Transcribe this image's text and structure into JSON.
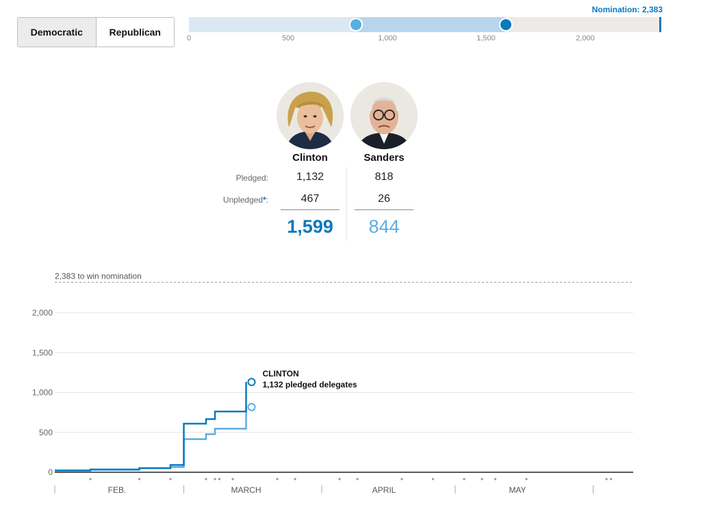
{
  "party_toggle": {
    "options": [
      "Democratic",
      "Republican"
    ],
    "selected": "Democratic"
  },
  "progress": {
    "nomination_label": "Nomination: 2,383",
    "max": 2383,
    "ticks": [
      "0",
      "500",
      "1,000",
      "1,500",
      "2,000"
    ],
    "tick_values": [
      0,
      500,
      1000,
      1500,
      2000
    ],
    "markers": [
      {
        "candidate": "Sanders",
        "value": 844
      },
      {
        "candidate": "Clinton",
        "value": 1599
      }
    ]
  },
  "candidates": [
    {
      "name": "Clinton",
      "pledged": "1,132",
      "unpledged": "467",
      "total": "1,599"
    },
    {
      "name": "Sanders",
      "pledged": "818",
      "unpledged": "26",
      "total": "844"
    }
  ],
  "labels": {
    "pledged": "Pledged:",
    "unpledged": "Unpledged",
    "star": "*"
  },
  "colors": {
    "clinton": "#0a79bd",
    "sanders": "#5aaee3",
    "track": "#ecebe7"
  },
  "chart_data": {
    "type": "line",
    "threshold": {
      "value": 2383,
      "label": "2,383 to win nomination"
    },
    "ylim": [
      0,
      2383
    ],
    "yticks": [
      0,
      500,
      1000,
      1500,
      2000
    ],
    "ytick_labels": [
      "0",
      "500",
      "1,000",
      "1,500",
      "2,000"
    ],
    "grid": true,
    "x_domain": [
      "2016-02-01",
      "2016-06-10"
    ],
    "month_labels": [
      {
        "label": "FEB.",
        "date": "2016-02-15"
      },
      {
        "label": "MARCH",
        "date": "2016-03-15"
      },
      {
        "label": "APRIL",
        "date": "2016-04-15"
      },
      {
        "label": "MAY",
        "date": "2016-05-15"
      }
    ],
    "month_boundaries": [
      "2016-02-01",
      "2016-03-01",
      "2016-04-01",
      "2016-05-01",
      "2016-06-01"
    ],
    "event_dots": [
      "2016-02-09",
      "2016-02-20",
      "2016-02-27",
      "2016-03-06",
      "2016-03-08",
      "2016-03-09",
      "2016-03-12",
      "2016-03-22",
      "2016-03-26",
      "2016-04-05",
      "2016-04-09",
      "2016-04-19",
      "2016-04-26",
      "2016-05-03",
      "2016-05-07",
      "2016-05-10",
      "2016-05-17",
      "2016-06-04",
      "2016-06-05"
    ],
    "annotation": {
      "title": "CLINTON",
      "text": "1,132 pledged delegates"
    },
    "series": [
      {
        "name": "Clinton",
        "color": "#0a79bd",
        "points": [
          [
            "2016-02-01",
            23
          ],
          [
            "2016-02-09",
            32
          ],
          [
            "2016-02-20",
            52
          ],
          [
            "2016-02-27",
            91
          ],
          [
            "2016-03-01",
            609
          ],
          [
            "2016-03-06",
            666
          ],
          [
            "2016-03-08",
            762
          ],
          [
            "2016-03-15",
            1132
          ]
        ]
      },
      {
        "name": "Sanders",
        "color": "#5aaee3",
        "points": [
          [
            "2016-02-01",
            21
          ],
          [
            "2016-02-09",
            36
          ],
          [
            "2016-02-20",
            51
          ],
          [
            "2016-02-27",
            65
          ],
          [
            "2016-03-01",
            415
          ],
          [
            "2016-03-06",
            477
          ],
          [
            "2016-03-08",
            546
          ],
          [
            "2016-03-15",
            818
          ]
        ]
      }
    ]
  }
}
